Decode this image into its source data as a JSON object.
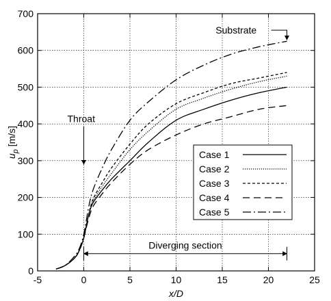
{
  "chart_data": {
    "type": "line",
    "xlabel": "x/D",
    "ylabel": "u_p [m/s]",
    "xlim": [
      -5,
      25
    ],
    "ylim": [
      0,
      700
    ],
    "xticks": [
      -5,
      0,
      5,
      10,
      15,
      20,
      25
    ],
    "yticks": [
      0,
      100,
      200,
      300,
      400,
      500,
      600,
      700
    ],
    "grid": "dotted",
    "legend_position": "lower-right",
    "series": [
      {
        "name": "Case 1",
        "dash": "solid",
        "x": [
          -3,
          -2,
          -1,
          -0.5,
          0,
          0.5,
          1,
          2,
          3,
          5,
          7,
          10,
          13,
          16,
          19,
          22
        ],
        "y": [
          5,
          15,
          35,
          55,
          90,
          150,
          185,
          220,
          250,
          300,
          350,
          410,
          440,
          465,
          485,
          500
        ]
      },
      {
        "name": "Case 2",
        "dash": "dotted",
        "x": [
          -3,
          -2,
          -1,
          -0.5,
          0,
          0.5,
          1,
          2,
          3,
          5,
          7,
          10,
          13,
          16,
          19,
          22
        ],
        "y": [
          5,
          15,
          35,
          55,
          90,
          150,
          190,
          230,
          265,
          330,
          380,
          440,
          470,
          495,
          515,
          530
        ]
      },
      {
        "name": "Case 3",
        "dash": "dashed-short",
        "x": [
          -3,
          -2,
          -1,
          -0.5,
          0,
          0.5,
          1,
          2,
          3,
          5,
          7,
          10,
          13,
          16,
          19,
          22
        ],
        "y": [
          5,
          15,
          35,
          55,
          90,
          150,
          195,
          240,
          280,
          345,
          400,
          455,
          485,
          510,
          525,
          540
        ]
      },
      {
        "name": "Case 4",
        "dash": "dashed-long",
        "x": [
          -3,
          -2,
          -1,
          -0.5,
          0,
          0.5,
          1,
          2,
          3,
          5,
          7,
          10,
          13,
          16,
          19,
          22
        ],
        "y": [
          5,
          15,
          35,
          55,
          90,
          140,
          175,
          210,
          240,
          290,
          330,
          370,
          400,
          420,
          440,
          450
        ]
      },
      {
        "name": "Case 5",
        "dash": "dash-dot",
        "x": [
          -3,
          -2,
          -1,
          -0.5,
          0,
          0.5,
          1,
          2,
          3,
          5,
          7,
          10,
          13,
          16,
          19,
          22
        ],
        "y": [
          5,
          15,
          40,
          60,
          100,
          170,
          220,
          280,
          330,
          410,
          460,
          520,
          560,
          590,
          610,
          625
        ]
      }
    ],
    "annotations": [
      {
        "text": "Throat",
        "x": 0,
        "y": 390,
        "arrow_to": [
          0,
          290
        ]
      },
      {
        "text": "Substrate",
        "x": 16.5,
        "y": 655,
        "arrow_to": [
          22,
          625
        ]
      },
      {
        "text": "Diverging section",
        "x": 11,
        "y": 70,
        "span": [
          0,
          22
        ],
        "span_y": 47
      }
    ]
  }
}
